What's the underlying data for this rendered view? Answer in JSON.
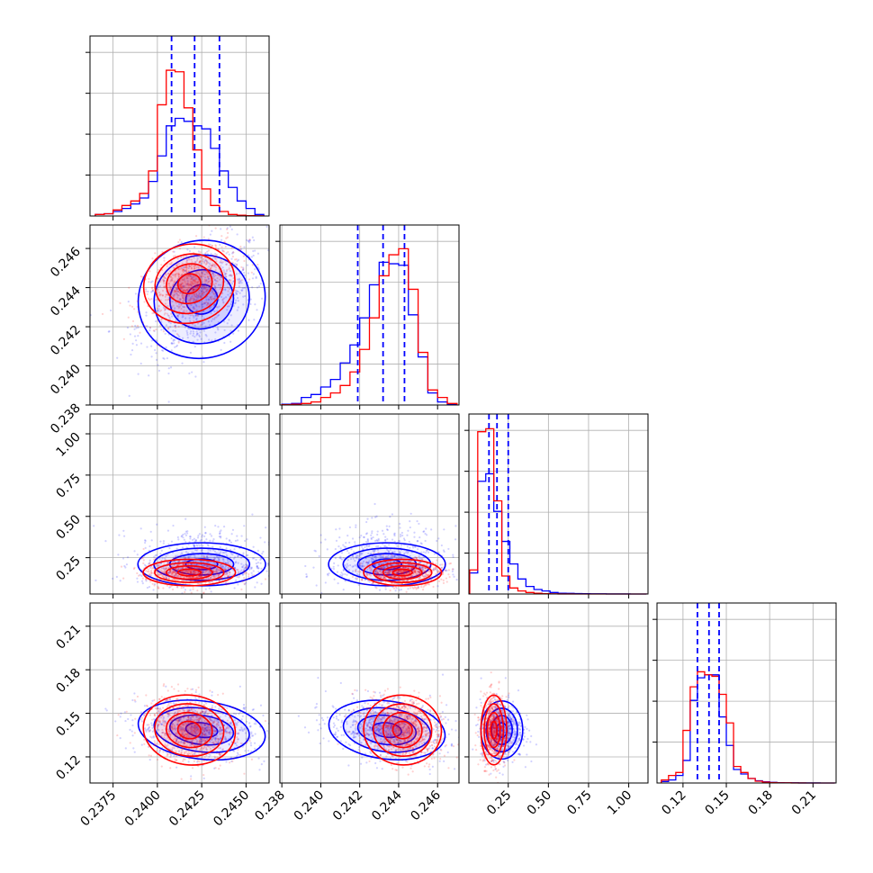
{
  "colors": {
    "series_a": "#0000ff",
    "series_b": "#ff0000",
    "grid": "#b0b0b0",
    "frame": "#000000"
  },
  "chart_data": [
    {
      "type": "histogram",
      "panel": "param1-marginal",
      "xlim": [
        0.2362,
        0.2463
      ],
      "bin_edges": [
        0.2365,
        0.237,
        0.2375,
        0.238,
        0.2385,
        0.239,
        0.2395,
        0.24,
        0.2405,
        0.241,
        0.2415,
        0.242,
        0.2425,
        0.243,
        0.2435,
        0.244,
        0.2445,
        0.245,
        0.2455,
        0.246
      ],
      "series": [
        {
          "color": "blue",
          "values": [
            0.01,
            0.015,
            0.03,
            0.05,
            0.08,
            0.12,
            0.23,
            0.4,
            0.6,
            0.65,
            0.63,
            0.6,
            0.58,
            0.45,
            0.3,
            0.19,
            0.1,
            0.05,
            0.01
          ]
        },
        {
          "color": "red",
          "values": [
            0.01,
            0.015,
            0.04,
            0.07,
            0.1,
            0.15,
            0.3,
            0.74,
            0.97,
            0.96,
            0.72,
            0.44,
            0.18,
            0.07,
            0.03,
            0.01,
            0.005,
            0.002,
            0.001
          ]
        }
      ],
      "quantile_lines": [
        0.2408,
        0.2421,
        0.2435
      ]
    },
    {
      "type": "histogram",
      "panel": "param2-marginal",
      "xlim": [
        0.2379,
        0.2471
      ],
      "bin_edges": [
        0.238,
        0.2385,
        0.239,
        0.2395,
        0.24,
        0.2405,
        0.241,
        0.2415,
        0.242,
        0.2425,
        0.243,
        0.2435,
        0.244,
        0.2445,
        0.245,
        0.2455,
        0.246,
        0.2465,
        0.247
      ],
      "series": [
        {
          "color": "blue",
          "values": [
            0.005,
            0.01,
            0.05,
            0.07,
            0.12,
            0.17,
            0.28,
            0.4,
            0.58,
            0.8,
            0.95,
            0.94,
            0.93,
            0.6,
            0.32,
            0.08,
            0.02,
            0.005
          ]
        },
        {
          "color": "red",
          "values": [
            0.002,
            0.005,
            0.01,
            0.02,
            0.05,
            0.08,
            0.13,
            0.22,
            0.37,
            0.58,
            0.86,
            1.0,
            1.04,
            0.77,
            0.35,
            0.1,
            0.05,
            0.01
          ]
        }
      ],
      "quantile_lines": [
        0.2419,
        0.2432,
        0.2443
      ]
    },
    {
      "type": "histogram",
      "panel": "param3-marginal",
      "xlim": [
        0.005,
        1.12
      ],
      "bin_edges": [
        0.01,
        0.06,
        0.11,
        0.16,
        0.21,
        0.26,
        0.31,
        0.36,
        0.41,
        0.46,
        0.51,
        0.56,
        0.61,
        0.66,
        0.71,
        0.76,
        0.81,
        0.86,
        0.91,
        0.96,
        1.01,
        1.06,
        1.11
      ],
      "series": [
        {
          "color": "blue",
          "values": [
            0.14,
            0.75,
            0.8,
            0.55,
            0.35,
            0.2,
            0.1,
            0.05,
            0.03,
            0.02,
            0.01,
            0.005,
            0.004,
            0.003,
            0.002,
            0.001,
            0.001,
            0.0005,
            0.0005,
            0.0003,
            0.0002,
            0.0001
          ]
        },
        {
          "color": "red",
          "values": [
            0.16,
            1.08,
            1.1,
            0.62,
            0.12,
            0.04,
            0.02,
            0.01,
            0.005,
            0.002,
            0.001,
            0.0005,
            0.0003,
            0.0002,
            0.0001,
            0.0001,
            0.0001,
            0.0001,
            0.0001,
            0.0001,
            0.0001,
            0.0001
          ]
        }
      ],
      "quantile_lines": [
        0.13,
        0.18,
        0.25
      ]
    },
    {
      "type": "histogram",
      "panel": "param4-marginal",
      "xlim": [
        0.102,
        0.226
      ],
      "bin_edges": [
        0.105,
        0.11,
        0.115,
        0.12,
        0.125,
        0.13,
        0.135,
        0.14,
        0.145,
        0.15,
        0.155,
        0.16,
        0.165,
        0.17,
        0.175,
        0.18,
        0.185,
        0.19,
        0.195,
        0.2,
        0.205,
        0.21,
        0.215,
        0.22,
        0.225
      ],
      "series": [
        {
          "color": "blue",
          "values": [
            0.01,
            0.02,
            0.05,
            0.15,
            0.55,
            0.7,
            0.72,
            0.72,
            0.44,
            0.25,
            0.09,
            0.06,
            0.03,
            0.015,
            0.008,
            0.004,
            0.002,
            0.001,
            0.001,
            0.0005,
            0.0004,
            0.0003,
            0.0002,
            0.0001
          ]
        },
        {
          "color": "red",
          "values": [
            0.02,
            0.05,
            0.07,
            0.35,
            0.64,
            0.74,
            0.72,
            0.71,
            0.59,
            0.4,
            0.11,
            0.07,
            0.03,
            0.012,
            0.006,
            0.003,
            0.001,
            0.001,
            0.0005,
            0.0003,
            0.0002,
            0.0001,
            0.0001,
            0.0001
          ]
        }
      ],
      "quantile_lines": [
        0.13,
        0.138,
        0.145
      ]
    },
    {
      "type": "scatter-contour",
      "panel": "param1-vs-param2",
      "xlim": [
        0.2362,
        0.2463
      ],
      "ylim": [
        0.238,
        0.2472
      ],
      "series": [
        {
          "color": "blue",
          "center": [
            0.2425,
            0.2434
          ],
          "spread": [
            0.0018,
            0.0015
          ],
          "corr": 0.45
        },
        {
          "color": "red",
          "center": [
            0.2418,
            0.2442
          ],
          "spread": [
            0.0013,
            0.001
          ],
          "corr": 0.45
        }
      ]
    },
    {
      "type": "scatter-contour",
      "panel": "param1-vs-param3",
      "xlim": [
        0.2362,
        0.2463
      ],
      "ylim": [
        0.03,
        1.12
      ],
      "series": [
        {
          "color": "blue",
          "center": [
            0.2425,
            0.21
          ],
          "spread": [
            0.0018,
            0.065
          ],
          "corr": 0.0
        },
        {
          "color": "red",
          "center": [
            0.2418,
            0.16
          ],
          "spread": [
            0.0013,
            0.04
          ],
          "corr": 0.0
        }
      ]
    },
    {
      "type": "scatter-contour",
      "panel": "param2-vs-param3",
      "xlim": [
        0.2379,
        0.2471
      ],
      "ylim": [
        0.03,
        1.12
      ],
      "series": [
        {
          "color": "blue",
          "center": [
            0.2434,
            0.21
          ],
          "spread": [
            0.0015,
            0.065
          ],
          "corr": 0.0
        },
        {
          "color": "red",
          "center": [
            0.2442,
            0.16
          ],
          "spread": [
            0.001,
            0.04
          ],
          "corr": 0.0
        }
      ]
    },
    {
      "type": "scatter-contour",
      "panel": "param1-vs-param4",
      "xlim": [
        0.2362,
        0.2463
      ],
      "ylim": [
        0.102,
        0.226
      ],
      "series": [
        {
          "color": "blue",
          "center": [
            0.2425,
            0.1385
          ],
          "spread": [
            0.0018,
            0.01
          ],
          "corr": -0.2
        },
        {
          "color": "red",
          "center": [
            0.2418,
            0.1385
          ],
          "spread": [
            0.0013,
            0.012
          ],
          "corr": -0.2
        }
      ]
    },
    {
      "type": "scatter-contour",
      "panel": "param2-vs-param4",
      "xlim": [
        0.2379,
        0.2471
      ],
      "ylim": [
        0.102,
        0.226
      ],
      "series": [
        {
          "color": "blue",
          "center": [
            0.2434,
            0.1385
          ],
          "spread": [
            0.0015,
            0.01
          ],
          "corr": -0.2
        },
        {
          "color": "red",
          "center": [
            0.2442,
            0.1385
          ],
          "spread": [
            0.001,
            0.012
          ],
          "corr": -0.2
        }
      ]
    },
    {
      "type": "scatter-contour",
      "panel": "param3-vs-param4",
      "xlim": [
        0.005,
        1.12
      ],
      "ylim": [
        0.102,
        0.226
      ],
      "series": [
        {
          "color": "blue",
          "center": [
            0.21,
            0.1385
          ],
          "spread": [
            0.065,
            0.01
          ],
          "corr": 0.0
        },
        {
          "color": "red",
          "center": [
            0.16,
            0.1385
          ],
          "spread": [
            0.04,
            0.012
          ],
          "corr": 0.0
        }
      ]
    }
  ],
  "axes": {
    "param1_ticks": [
      "0.2375",
      "0.2400",
      "0.2425",
      "0.2450"
    ],
    "param1_tick_values": [
      0.2375,
      0.24,
      0.2425,
      0.245
    ],
    "param2_ticks": [
      "0.238",
      "0.240",
      "0.242",
      "0.244",
      "0.246"
    ],
    "param2_tick_values": [
      0.238,
      0.24,
      0.242,
      0.244,
      0.246
    ],
    "param3_ticks": [
      "0.25",
      "0.50",
      "0.75",
      "1.00"
    ],
    "param3_tick_values": [
      0.25,
      0.5,
      0.75,
      1.0
    ],
    "param4_ticks": [
      "0.12",
      "0.15",
      "0.18",
      "0.21"
    ],
    "param4_tick_values": [
      0.12,
      0.15,
      0.18,
      0.21
    ]
  }
}
